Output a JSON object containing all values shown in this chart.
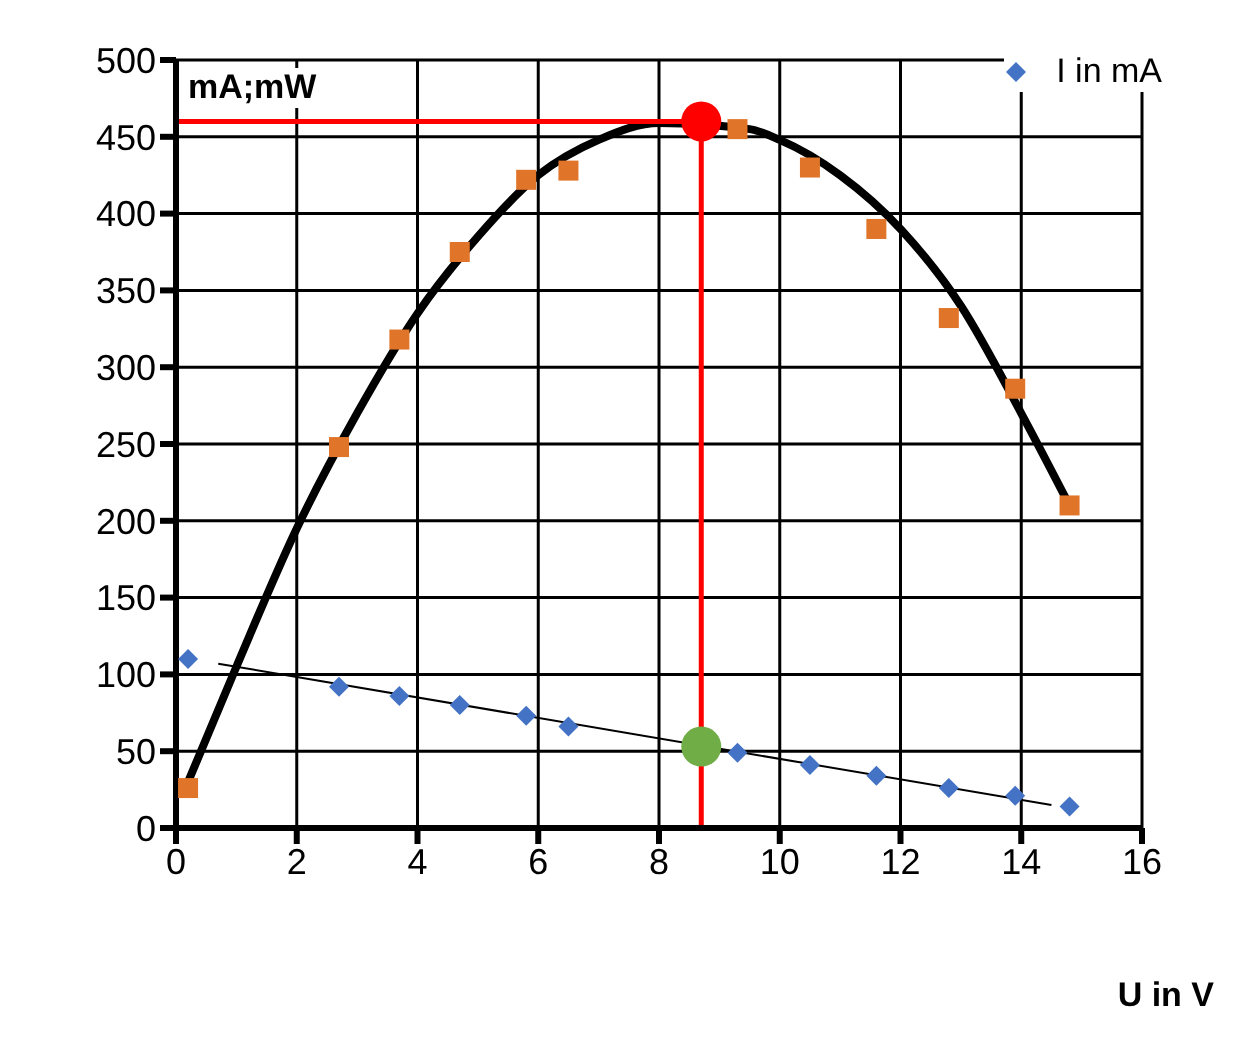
{
  "chart_data": {
    "type": "scatter",
    "xlabel": "U in V",
    "ylabel": "mA;mW",
    "xlim": [
      0,
      16
    ],
    "xticks": [
      0,
      2,
      4,
      6,
      8,
      10,
      12,
      14,
      16
    ],
    "ylim": [
      0,
      500
    ],
    "yticks": [
      0,
      50,
      100,
      150,
      200,
      250,
      300,
      350,
      400,
      450,
      500
    ],
    "grid": true,
    "legend": "top right",
    "series": [
      {
        "name": "I in mA",
        "color": "#4472c4",
        "marker": "diamond",
        "x": [
          0.2,
          2.7,
          3.7,
          4.7,
          5.8,
          6.5,
          9.3,
          10.5,
          11.6,
          12.8,
          13.9,
          14.8
        ],
        "values": [
          110,
          92,
          86,
          80,
          73,
          66,
          49,
          41,
          34,
          26,
          21,
          14
        ]
      },
      {
        "color": "#e07428",
        "marker": "square",
        "x": [
          0.2,
          2.7,
          3.7,
          4.7,
          5.8,
          6.5,
          9.3,
          10.5,
          11.6,
          12.8,
          13.9,
          14.8
        ],
        "values": [
          26,
          248,
          318,
          375,
          422,
          428,
          455,
          430,
          390,
          332,
          286,
          210
        ]
      },
      {
        "type": "line",
        "color": "#000000",
        "marker": "none",
        "x": [
          0.2,
          1,
          2,
          3,
          4,
          5,
          6,
          7,
          8,
          9.5,
          10,
          11,
          12,
          13,
          14,
          14.8
        ],
        "values": [
          30,
          105,
          195,
          270,
          335,
          385,
          425,
          448,
          459,
          455,
          448,
          425,
          390,
          340,
          270,
          210
        ]
      },
      {
        "type": "line",
        "color": "#000000",
        "marker": "none",
        "x": [
          0.7,
          14.5
        ],
        "values": [
          107,
          15
        ]
      },
      {
        "type": "line",
        "color": "#ff0000",
        "marker": "none",
        "x": [
          0,
          8.7
        ],
        "values": [
          460,
          460
        ]
      },
      {
        "type": "line",
        "color": "#ff0000",
        "marker": "none",
        "x": [
          8.7,
          8.7
        ],
        "values": [
          0,
          460
        ]
      },
      {
        "color": "#ff0000",
        "marker": "circle",
        "x": [
          8.7
        ],
        "values": [
          460
        ]
      },
      {
        "color": "#70ad47",
        "marker": "circle",
        "x": [
          8.7
        ],
        "values": [
          53
        ]
      }
    ]
  }
}
